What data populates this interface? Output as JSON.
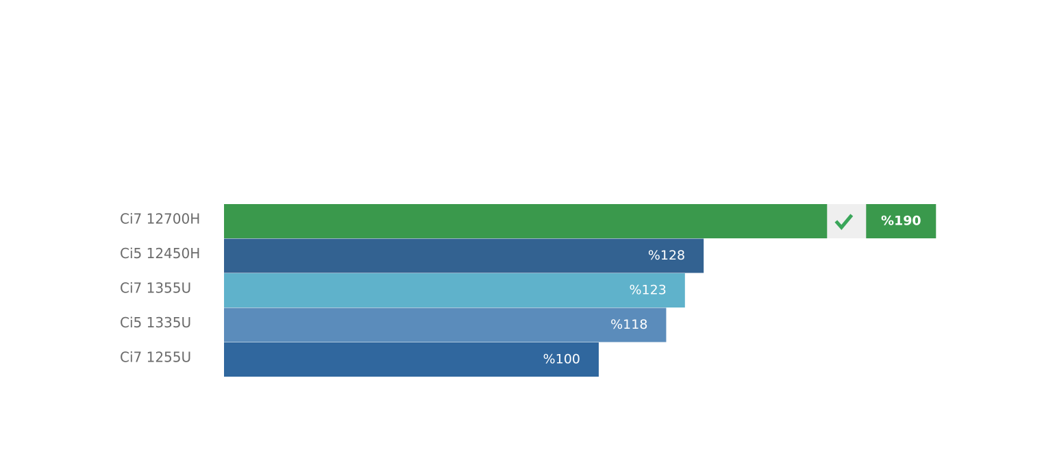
{
  "chart_data": {
    "type": "bar",
    "orientation": "horizontal",
    "categories": [
      "Ci7 12700H",
      "Ci5 12450H",
      "Ci7 1355U",
      "Ci5 1335U",
      "Ci7 1255U"
    ],
    "values": [
      190,
      128,
      123,
      118,
      100
    ],
    "value_labels": [
      "%190",
      "%128",
      "%123",
      "%118",
      "%100"
    ],
    "colors": [
      "#3a994c",
      "#336291",
      "#5fb2cb",
      "#5b8cbb",
      "#30679e"
    ]
  }
}
